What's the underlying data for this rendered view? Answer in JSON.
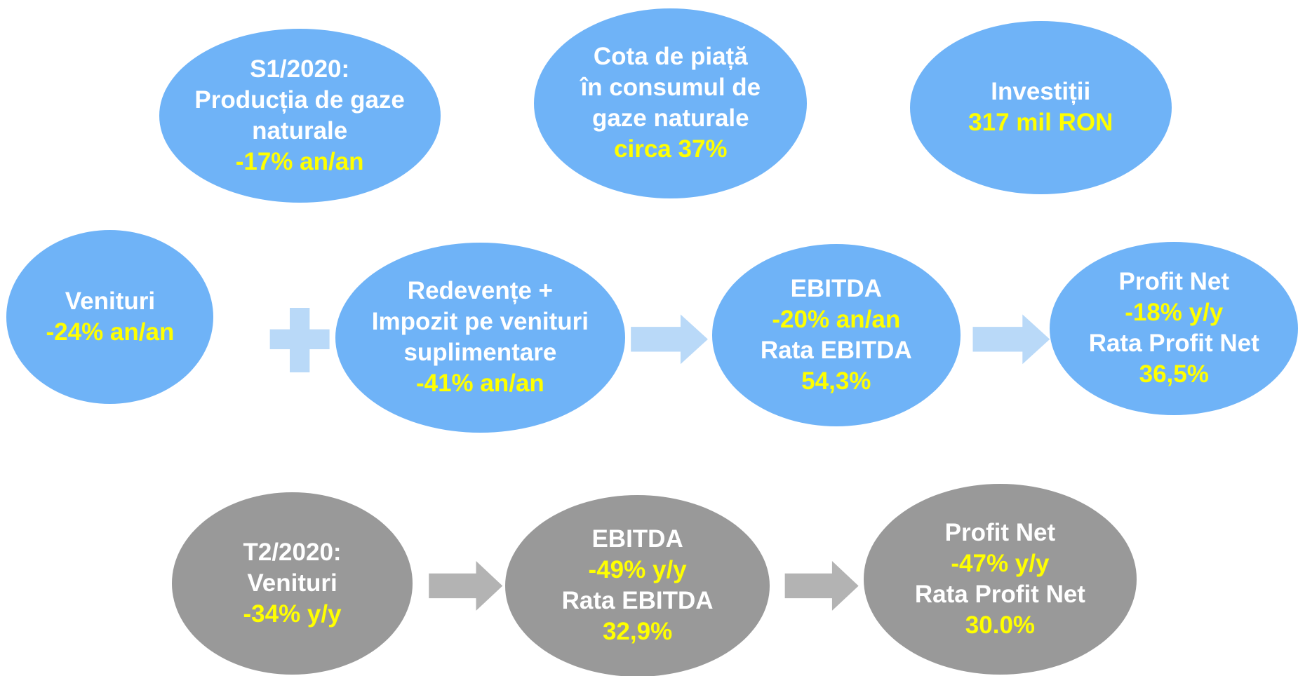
{
  "nodes": [
    {
      "lines": [
        {
          "text": "S1/2020:",
          "color": "#ffffff"
        },
        {
          "text": "Producția de gaze",
          "color": "#ffffff"
        },
        {
          "text": "naturale",
          "color": "#ffffff"
        },
        {
          "text": "-17% an/an",
          "color": "#ffff00"
        }
      ],
      "fill": "#6fb3f7"
    },
    {
      "lines": [
        {
          "text": "Cota de piață",
          "color": "#ffffff"
        },
        {
          "text": "în consumul de",
          "color": "#ffffff"
        },
        {
          "text": "gaze naturale",
          "color": "#ffffff"
        },
        {
          "text": "circa 37%",
          "color": "#ffff00"
        }
      ],
      "fill": "#6fb3f7"
    },
    {
      "lines": [
        {
          "text": "Investiții",
          "color": "#ffffff"
        },
        {
          "text": "317 mil RON",
          "color": "#ffff00"
        }
      ],
      "fill": "#6fb3f7"
    },
    {
      "lines": [
        {
          "text": "Venituri",
          "color": "#ffffff"
        },
        {
          "text": "-24% an/an",
          "color": "#ffff00"
        }
      ],
      "fill": "#6fb3f7"
    },
    {
      "lines": [
        {
          "text": "Redevențe +",
          "color": "#ffffff"
        },
        {
          "text": "Impozit pe venituri",
          "color": "#ffffff"
        },
        {
          "text": "suplimentare",
          "color": "#ffffff"
        },
        {
          "text": "-41% an/an",
          "color": "#ffff00"
        }
      ],
      "fill": "#6fb3f7"
    },
    {
      "lines": [
        {
          "text": "EBITDA",
          "color": "#ffffff"
        },
        {
          "text": "-20% an/an",
          "color": "#ffff00"
        },
        {
          "text": "Rata EBITDA",
          "color": "#ffffff"
        },
        {
          "text": "54,3%",
          "color": "#ffff00"
        }
      ],
      "fill": "#6fb3f7"
    },
    {
      "lines": [
        {
          "text": "Profit Net",
          "color": "#ffffff"
        },
        {
          "text": "-18% y/y",
          "color": "#ffff00"
        },
        {
          "text": "Rata Profit Net",
          "color": "#ffffff"
        },
        {
          "text": "36,5%",
          "color": "#ffff00"
        }
      ],
      "fill": "#6fb3f7"
    },
    {
      "lines": [
        {
          "text": "T2/2020:",
          "color": "#ffffff"
        },
        {
          "text": "Venituri",
          "color": "#ffffff"
        },
        {
          "text": "-34% y/y",
          "color": "#ffff00"
        }
      ],
      "fill": "#999999"
    },
    {
      "lines": [
        {
          "text": "EBITDA",
          "color": "#ffffff"
        },
        {
          "text": "-49% y/y",
          "color": "#ffff00"
        },
        {
          "text": "Rata EBITDA",
          "color": "#ffffff"
        },
        {
          "text": "32,9%",
          "color": "#ffff00"
        }
      ],
      "fill": "#999999"
    },
    {
      "lines": [
        {
          "text": "Profit Net",
          "color": "#ffffff"
        },
        {
          "text": "-47% y/y",
          "color": "#ffff00"
        },
        {
          "text": "Rata Profit Net",
          "color": "#ffffff"
        },
        {
          "text": "30.0%",
          "color": "#ffff00"
        }
      ],
      "fill": "#999999"
    }
  ]
}
